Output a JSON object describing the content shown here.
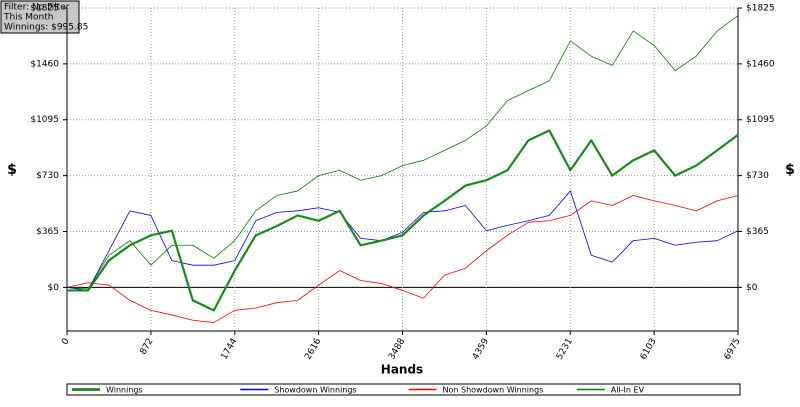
{
  "chart_data": {
    "type": "line",
    "annotations": [
      "Filter: No Filter",
      "This Month",
      "Winnings: $995.85"
    ],
    "x_label": "Hands",
    "y_label": "$",
    "y2_label": "$",
    "grid": true,
    "legend": "bottom",
    "xlim": [
      0,
      6975
    ],
    "xticks": [
      0,
      872,
      1744,
      2616,
      3488,
      4359,
      5231,
      6103,
      6975
    ],
    "ylim": [
      -285,
      1825
    ],
    "yticks": [
      {
        "value": 0,
        "label": "$0"
      },
      {
        "value": 365,
        "label": "$365"
      },
      {
        "value": 730,
        "label": "$730"
      },
      {
        "value": 1095,
        "label": "$1095"
      },
      {
        "value": 1460,
        "label": "$1460"
      },
      {
        "value": 1825,
        "label": "$1825"
      }
    ],
    "y2lim": [
      -285,
      1825
    ],
    "y2ticks": [
      {
        "value": 0,
        "label": "$0"
      },
      {
        "value": 365,
        "label": "$365"
      },
      {
        "value": 730,
        "label": "$730"
      },
      {
        "value": 1095,
        "label": "$1095"
      },
      {
        "value": 1460,
        "label": "$1460"
      },
      {
        "value": 1825,
        "label": "$1825"
      }
    ],
    "x": [
      0,
      218,
      436,
      654,
      872,
      1090,
      1308,
      1526,
      1744,
      1962,
      2180,
      2398,
      2616,
      2834,
      3052,
      3270,
      3488,
      3706,
      3924,
      4142,
      4360,
      4578,
      4796,
      5014,
      5232,
      5450,
      5668,
      5886,
      6104,
      6322,
      6540,
      6758,
      6975
    ],
    "series": [
      {
        "name": "Winnings",
        "color": "#1a8a1a",
        "width": 2.2,
        "values": [
          -20,
          -20,
          176,
          275,
          340,
          370,
          -85,
          -150,
          110,
          340,
          400,
          470,
          435,
          500,
          275,
          305,
          340,
          470,
          565,
          665,
          700,
          765,
          960,
          1025,
          765,
          960,
          730,
          830,
          895,
          730,
          795,
          895,
          996
        ]
      },
      {
        "name": "Showdown Winnings",
        "color": "#0000ff",
        "width": 0.8,
        "values": [
          0,
          -20,
          240,
          500,
          470,
          175,
          145,
          145,
          175,
          435,
          490,
          500,
          520,
          490,
          320,
          305,
          360,
          490,
          500,
          535,
          370,
          405,
          435,
          470,
          630,
          210,
          165,
          305,
          320,
          275,
          295,
          305,
          370
        ]
      },
      {
        "name": "Non Showdown Winnings",
        "color": "#ff0000",
        "width": 0.8,
        "values": [
          0,
          30,
          15,
          -85,
          -150,
          -180,
          -215,
          -230,
          -150,
          -135,
          -100,
          -85,
          15,
          110,
          45,
          25,
          -20,
          -70,
          80,
          125,
          240,
          340,
          425,
          435,
          470,
          565,
          535,
          600,
          565,
          535,
          500,
          565,
          600
        ]
      },
      {
        "name": "All-In EV",
        "color": "#008000",
        "width": 0.8,
        "values": [
          0,
          -10,
          210,
          305,
          145,
          275,
          275,
          190,
          305,
          500,
          600,
          630,
          730,
          765,
          700,
          730,
          795,
          830,
          895,
          960,
          1055,
          1220,
          1285,
          1350,
          1610,
          1510,
          1450,
          1675,
          1580,
          1415,
          1510,
          1675,
          1775
        ]
      }
    ]
  }
}
